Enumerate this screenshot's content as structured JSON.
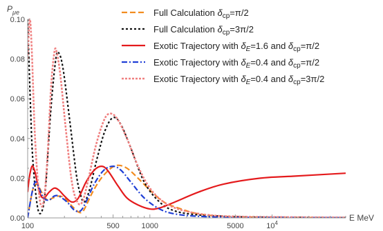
{
  "chart_data": {
    "type": "line",
    "ylabel": "P",
    "ylabel_sub": "μe",
    "xlabel": "E MeV",
    "x_scale": "log",
    "xlim": [
      100,
      40000
    ],
    "ylim": [
      0,
      0.1
    ],
    "x_ticks": [
      {
        "value": 100,
        "label": "100"
      },
      {
        "value": 500,
        "label": "500"
      },
      {
        "value": 1000,
        "label": "1000"
      },
      {
        "value": 5000,
        "label": "5000"
      },
      {
        "value": 10000,
        "label": "10",
        "sup": "4"
      }
    ],
    "y_ticks": [
      {
        "value": 0.0,
        "label": "0.00"
      },
      {
        "value": 0.02,
        "label": "0.02"
      },
      {
        "value": 0.04,
        "label": "0.04"
      },
      {
        "value": 0.06,
        "label": "0.06"
      },
      {
        "value": 0.08,
        "label": "0.08"
      },
      {
        "value": 0.1,
        "label": "0.10"
      }
    ],
    "legend_position": "top-right",
    "series": [
      {
        "name": "Full Calculation δcp=π/2",
        "legend": [
          {
            "t": "Full Calculation "
          },
          {
            "t": "δ",
            "i": true
          },
          {
            "t": "cp",
            "s": true
          },
          {
            "t": "=π/2"
          }
        ],
        "color": "#f28c1f",
        "dash": "8,4",
        "width": 2.2,
        "points": [
          [
            100,
            0.0
          ],
          [
            110,
            0.014
          ],
          [
            120,
            0.017
          ],
          [
            130,
            0.013
          ],
          [
            145,
            0.009
          ],
          [
            160,
            0.01
          ],
          [
            180,
            0.011
          ],
          [
            200,
            0.01
          ],
          [
            230,
            0.006
          ],
          [
            260,
            0.003
          ],
          [
            280,
            0.003
          ],
          [
            300,
            0.006
          ],
          [
            340,
            0.013
          ],
          [
            400,
            0.02
          ],
          [
            480,
            0.025
          ],
          [
            550,
            0.0265
          ],
          [
            650,
            0.025
          ],
          [
            800,
            0.02
          ],
          [
            1000,
            0.014
          ],
          [
            1300,
            0.008
          ],
          [
            1800,
            0.0045
          ],
          [
            2500,
            0.002
          ],
          [
            4000,
            0.0008
          ],
          [
            8000,
            0.0003
          ],
          [
            15000,
            0.0002
          ],
          [
            40000,
            0.0001
          ]
        ]
      },
      {
        "name": "Full Calculation δcp=3π/2",
        "legend": [
          {
            "t": "Full Calculation "
          },
          {
            "t": "δ",
            "i": true
          },
          {
            "t": "cp",
            "s": true
          },
          {
            "t": "=3π/2"
          }
        ],
        "color": "#111111",
        "dash": "3,3",
        "width": 2.2,
        "points": [
          [
            100,
            0.1
          ],
          [
            105,
            0.06
          ],
          [
            110,
            0.03
          ],
          [
            120,
            0.006
          ],
          [
            130,
            0.003
          ],
          [
            140,
            0.015
          ],
          [
            155,
            0.055
          ],
          [
            170,
            0.08
          ],
          [
            180,
            0.083
          ],
          [
            195,
            0.075
          ],
          [
            220,
            0.05
          ],
          [
            250,
            0.022
          ],
          [
            270,
            0.012
          ],
          [
            290,
            0.008
          ],
          [
            320,
            0.014
          ],
          [
            370,
            0.03
          ],
          [
            430,
            0.044
          ],
          [
            500,
            0.0505
          ],
          [
            580,
            0.047
          ],
          [
            700,
            0.035
          ],
          [
            900,
            0.018
          ],
          [
            1200,
            0.008
          ],
          [
            1600,
            0.0035
          ],
          [
            2500,
            0.0015
          ],
          [
            5000,
            0.0006
          ],
          [
            10000,
            0.0003
          ],
          [
            40000,
            0.0001
          ]
        ]
      },
      {
        "name": "Exotic Trajectory with δE=1.6 and δcp=π/2",
        "legend": [
          {
            "t": "Exotic Trajectory with "
          },
          {
            "t": "δ",
            "i": true
          },
          {
            "t": "E",
            "s": true,
            "i": true
          },
          {
            "t": "=1.6 and "
          },
          {
            "t": "δ",
            "i": true
          },
          {
            "t": "cp",
            "s": true
          },
          {
            "t": "=π/2"
          }
        ],
        "color": "#e41a1c",
        "dash": "",
        "width": 2.2,
        "points": [
          [
            100,
            0.013
          ],
          [
            103,
            0.02
          ],
          [
            107,
            0.025
          ],
          [
            110,
            0.026
          ],
          [
            115,
            0.023
          ],
          [
            125,
            0.013
          ],
          [
            135,
            0.01
          ],
          [
            150,
            0.013
          ],
          [
            165,
            0.015
          ],
          [
            180,
            0.014
          ],
          [
            200,
            0.011
          ],
          [
            230,
            0.008
          ],
          [
            260,
            0.01
          ],
          [
            300,
            0.018
          ],
          [
            350,
            0.024
          ],
          [
            400,
            0.026
          ],
          [
            450,
            0.024
          ],
          [
            550,
            0.016
          ],
          [
            650,
            0.01
          ],
          [
            800,
            0.0065
          ],
          [
            1000,
            0.0045
          ],
          [
            1200,
            0.005
          ],
          [
            1600,
            0.008
          ],
          [
            2500,
            0.013
          ],
          [
            4000,
            0.017
          ],
          [
            8000,
            0.02
          ],
          [
            15000,
            0.021
          ],
          [
            40000,
            0.0225
          ]
        ]
      },
      {
        "name": "Exotic Trajectory with δE=0.4 and δcp=π/2",
        "legend": [
          {
            "t": "Exotic Trajectory with "
          },
          {
            "t": "δ",
            "i": true
          },
          {
            "t": "E",
            "s": true,
            "i": true
          },
          {
            "t": "=0.4 and "
          },
          {
            "t": "δ",
            "i": true
          },
          {
            "t": "cp",
            "s": true
          },
          {
            "t": "=π/2"
          }
        ],
        "color": "#1f3fd6",
        "dash": "8,3,2,3",
        "width": 2.2,
        "points": [
          [
            100,
            0.0
          ],
          [
            108,
            0.012
          ],
          [
            115,
            0.018
          ],
          [
            122,
            0.016
          ],
          [
            135,
            0.01
          ],
          [
            150,
            0.009
          ],
          [
            165,
            0.011
          ],
          [
            180,
            0.011
          ],
          [
            210,
            0.008
          ],
          [
            240,
            0.004
          ],
          [
            270,
            0.0035
          ],
          [
            300,
            0.008
          ],
          [
            350,
            0.017
          ],
          [
            420,
            0.024
          ],
          [
            500,
            0.026
          ],
          [
            580,
            0.024
          ],
          [
            700,
            0.018
          ],
          [
            900,
            0.01
          ],
          [
            1200,
            0.0045
          ],
          [
            1600,
            0.002
          ],
          [
            2500,
            0.0008
          ],
          [
            5000,
            0.0003
          ],
          [
            10000,
            0.0002
          ],
          [
            40000,
            0.0001
          ]
        ]
      },
      {
        "name": "Exotic Trajectory with δE=0.4 and δcp=3π/2",
        "legend": [
          {
            "t": "Exotic Trajectory with "
          },
          {
            "t": "δ",
            "i": true
          },
          {
            "t": "E",
            "s": true,
            "i": true
          },
          {
            "t": "=0.4 and "
          },
          {
            "t": "δ",
            "i": true
          },
          {
            "t": "cp",
            "s": true
          },
          {
            "t": "=3π/2"
          }
        ],
        "color": "#f08080",
        "dash": "3,2",
        "width": 2.6,
        "points": [
          [
            100,
            0.08
          ],
          [
            104,
            0.1
          ],
          [
            108,
            0.085
          ],
          [
            115,
            0.04
          ],
          [
            125,
            0.01
          ],
          [
            135,
            0.008
          ],
          [
            145,
            0.03
          ],
          [
            155,
            0.065
          ],
          [
            165,
            0.083
          ],
          [
            172,
            0.084
          ],
          [
            185,
            0.072
          ],
          [
            205,
            0.045
          ],
          [
            230,
            0.018
          ],
          [
            255,
            0.008
          ],
          [
            280,
            0.008
          ],
          [
            310,
            0.018
          ],
          [
            360,
            0.036
          ],
          [
            420,
            0.049
          ],
          [
            470,
            0.0525
          ],
          [
            540,
            0.05
          ],
          [
            650,
            0.04
          ],
          [
            800,
            0.026
          ],
          [
            1000,
            0.015
          ],
          [
            1300,
            0.008
          ],
          [
            1800,
            0.004
          ],
          [
            3000,
            0.0015
          ],
          [
            6000,
            0.0006
          ],
          [
            40000,
            0.0002
          ]
        ]
      }
    ]
  }
}
